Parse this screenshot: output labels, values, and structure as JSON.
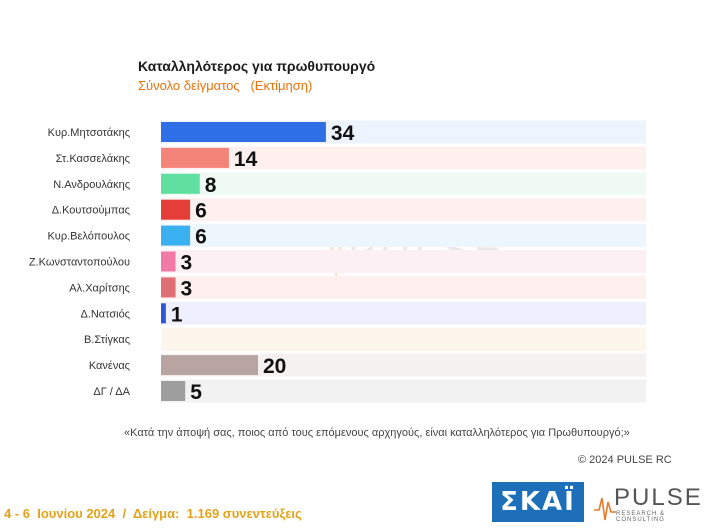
{
  "chart_data": {
    "type": "bar",
    "orientation": "horizontal",
    "title": "Καταλληλότερος για πρωθυπουργό",
    "subtitle": "Σύνολο δείγματος   (Εκτίμηση)",
    "categories": [
      "Κυρ.Μητσοτάκης",
      "Στ.Κασσελάκης",
      "Ν.Ανδρουλάκης",
      "Δ.Κουτσούμπας",
      "Κυρ.Βελόπουλος",
      "Ζ.Κωνσταντοπούλου",
      "Αλ.Χαρίτσης",
      "Δ.Νατσιός",
      "Β.Στίγκας",
      "Κανένας",
      "ΔΓ / ΔΑ"
    ],
    "values": [
      34,
      14,
      8,
      6,
      6,
      3,
      3,
      1,
      0,
      20,
      5
    ],
    "value_labels": [
      "34",
      "14",
      "8",
      "6",
      "6",
      "3",
      "3",
      "1",
      "",
      "20",
      "5"
    ],
    "bar_colors": [
      "#2f6fe6",
      "#f4837a",
      "#5fe0a0",
      "#e53e36",
      "#3ab0f0",
      "#f27aa6",
      "#e06e76",
      "#2f55d8",
      "#e8a040",
      "#b8a4a0",
      "#9e9e9e"
    ],
    "row_backgrounds": [
      "#eef4fd",
      "#fdf0ef",
      "#eefaf3",
      "#fdf0ef",
      "#eef6fd",
      "#fdf0f4",
      "#fdf0ef",
      "#eef0fd",
      "#fdf6ec",
      "#f5f1f0",
      "#f2f2f2"
    ],
    "xlim": [
      0,
      100
    ],
    "grid": false,
    "legend": "none"
  },
  "watermark": {
    "word": "PULSE",
    "sub": "RESEARCH & CONSULTING"
  },
  "question": "«Κατά την άποψή σας, ποιος από τους επόμενους αρχηγούς, είναι καταλληλότερος για Πρωθυπουργό;»",
  "copyright": "© 2024 PULSE RC",
  "footer_note": "4 - 6  Ιουνίου 2024  /  Δείγμα:  1.169 συνεντεύξεις",
  "logos": {
    "skai": "ΣΚΑΪ",
    "pulse": "PULSE",
    "pulse_sub": "RESEARCH & CONSULTING"
  }
}
